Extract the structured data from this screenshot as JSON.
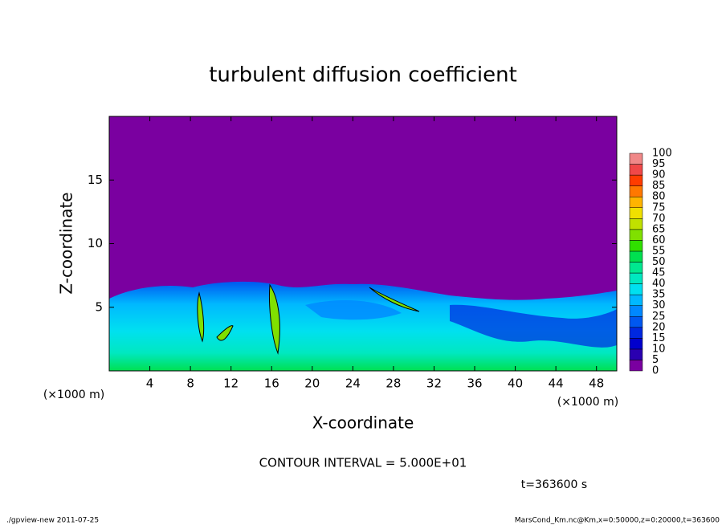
{
  "chart_data": {
    "type": "heatmap",
    "title": "turbulent diffusion coefficient",
    "xlabel": "X-coordinate",
    "ylabel": "Z-coordinate",
    "xunit": "(×1000 m)",
    "xlim": [
      0,
      50
    ],
    "xticks": [
      4,
      8,
      12,
      16,
      20,
      24,
      28,
      32,
      36,
      40,
      44,
      48
    ],
    "ylim": [
      0,
      20
    ],
    "yticks": [
      5,
      10,
      15
    ],
    "colorbar": {
      "levels": [
        0,
        5,
        10,
        15,
        20,
        25,
        30,
        35,
        40,
        45,
        50,
        55,
        60,
        65,
        70,
        75,
        80,
        85,
        90,
        95,
        100
      ],
      "colors": [
        "#7a00a0",
        "#2a00b0",
        "#0000cc",
        "#0028e0",
        "#0058f0",
        "#0088ff",
        "#00b8ff",
        "#00e0f0",
        "#00e8c0",
        "#00e890",
        "#00e050",
        "#30e000",
        "#80e000",
        "#c0e000",
        "#f0e000",
        "#ffb400",
        "#ff7800",
        "#ff3c00",
        "#f04848",
        "#f08888"
      ]
    },
    "annotation": "CONTOUR INTERVAL = 5.000E+01",
    "time_label": "t=363600 s",
    "footer_left": "./gpview-new  2011-07-25",
    "footer_right": "MarsCond_Km.nc@Km,x=0:50000,z=0:20000,t=363600"
  }
}
